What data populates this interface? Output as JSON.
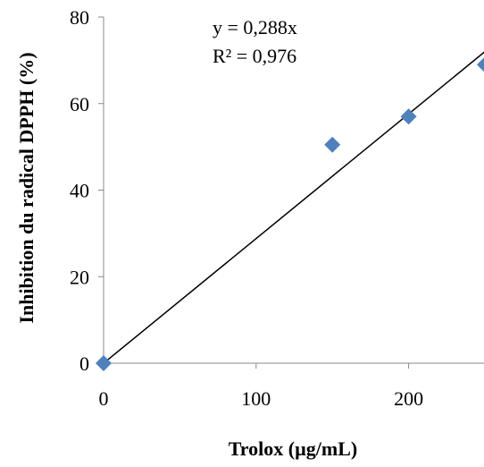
{
  "chart_data": {
    "type": "scatter",
    "xlabel": "Trolox (µg/mL)",
    "ylabel": "Inhibition du radical DPPH (%)",
    "xlim": [
      0,
      250
    ],
    "ylim": [
      0,
      80
    ],
    "x_ticks": [
      0,
      100,
      200
    ],
    "y_ticks": [
      0,
      20,
      40,
      60,
      80
    ],
    "grid": false,
    "legend": "none",
    "marker_color": "#4f81bd",
    "trendline_color": "#000000",
    "series": [
      {
        "x": [
          0,
          150,
          200,
          250
        ],
        "y": [
          0,
          50.5,
          57,
          69
        ]
      }
    ],
    "trendline": {
      "slope": 0.288,
      "intercept": 0,
      "x_range": [
        0,
        250
      ]
    },
    "annotations": [
      "y = 0,288x",
      "R² = 0,976"
    ]
  }
}
